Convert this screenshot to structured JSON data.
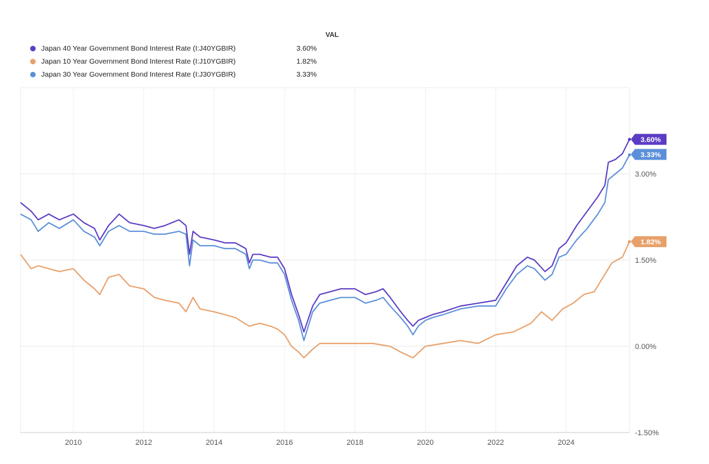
{
  "chart_data": {
    "type": "line",
    "title": "",
    "legend_header": "VAL",
    "ylim": [
      -1.5,
      4.5
    ],
    "xlim": [
      2008.5,
      2025.8
    ],
    "y_ticks": [
      {
        "value": 3.0,
        "label": "3.00%"
      },
      {
        "value": 1.5,
        "label": "1.50%"
      },
      {
        "value": 0.0,
        "label": "0.00%"
      },
      {
        "value": -1.5,
        "label": "-1.50%"
      }
    ],
    "x_ticks": [
      {
        "value": 2010,
        "label": "2010"
      },
      {
        "value": 2012,
        "label": "2012"
      },
      {
        "value": 2014,
        "label": "2014"
      },
      {
        "value": 2016,
        "label": "2016"
      },
      {
        "value": 2018,
        "label": "2018"
      },
      {
        "value": 2020,
        "label": "2020"
      },
      {
        "value": 2022,
        "label": "2022"
      },
      {
        "value": 2024,
        "label": "2024"
      }
    ],
    "series": [
      {
        "name": "Japan 40 Year Government Bond Interest Rate (I:J40YGBIR)",
        "value_label": "3.60%",
        "color": "#5b3cc4",
        "x": [
          2008.5,
          2008.8,
          2009.0,
          2009.3,
          2009.6,
          2010.0,
          2010.3,
          2010.6,
          2010.75,
          2011.0,
          2011.3,
          2011.6,
          2012.0,
          2012.3,
          2012.6,
          2013.0,
          2013.2,
          2013.3,
          2013.4,
          2013.6,
          2014.0,
          2014.3,
          2014.6,
          2014.9,
          2015.0,
          2015.1,
          2015.3,
          2015.6,
          2015.8,
          2016.0,
          2016.2,
          2016.4,
          2016.55,
          2016.8,
          2017.0,
          2017.3,
          2017.6,
          2018.0,
          2018.3,
          2018.6,
          2018.8,
          2019.0,
          2019.3,
          2019.5,
          2019.65,
          2019.8,
          2020.0,
          2020.2,
          2020.5,
          2021.0,
          2021.5,
          2022.0,
          2022.3,
          2022.6,
          2022.9,
          2023.1,
          2023.4,
          2023.6,
          2023.8,
          2024.0,
          2024.3,
          2024.6,
          2024.9,
          2025.1,
          2025.2,
          2025.4,
          2025.6,
          2025.8
        ],
        "values": [
          2.5,
          2.35,
          2.2,
          2.3,
          2.2,
          2.3,
          2.15,
          2.05,
          1.85,
          2.1,
          2.3,
          2.15,
          2.1,
          2.05,
          2.1,
          2.2,
          2.1,
          1.6,
          2.0,
          1.9,
          1.85,
          1.8,
          1.8,
          1.7,
          1.45,
          1.6,
          1.6,
          1.55,
          1.55,
          1.35,
          0.9,
          0.55,
          0.25,
          0.7,
          0.9,
          0.95,
          1.0,
          1.0,
          0.9,
          0.95,
          1.0,
          0.85,
          0.6,
          0.45,
          0.35,
          0.45,
          0.5,
          0.55,
          0.6,
          0.7,
          0.75,
          0.8,
          1.1,
          1.4,
          1.55,
          1.5,
          1.3,
          1.4,
          1.7,
          1.8,
          2.1,
          2.35,
          2.6,
          2.8,
          3.2,
          3.25,
          3.35,
          3.6
        ]
      },
      {
        "name": "Japan 10 Year Government Bond Interest Rate (I:J10YGBIR)",
        "value_label": "1.82%",
        "color": "#e8a06a",
        "x": [
          2008.5,
          2008.8,
          2009.0,
          2009.3,
          2009.6,
          2010.0,
          2010.3,
          2010.6,
          2010.75,
          2011.0,
          2011.3,
          2011.6,
          2012.0,
          2012.3,
          2012.6,
          2013.0,
          2013.2,
          2013.4,
          2013.6,
          2014.0,
          2014.3,
          2014.6,
          2015.0,
          2015.3,
          2015.6,
          2015.8,
          2016.0,
          2016.2,
          2016.4,
          2016.55,
          2016.8,
          2017.0,
          2017.5,
          2018.0,
          2018.5,
          2019.0,
          2019.3,
          2019.65,
          2020.0,
          2020.5,
          2021.0,
          2021.5,
          2022.0,
          2022.5,
          2023.0,
          2023.3,
          2023.6,
          2023.9,
          2024.2,
          2024.5,
          2024.8,
          2025.0,
          2025.3,
          2025.6,
          2025.8
        ],
        "values": [
          1.6,
          1.35,
          1.4,
          1.35,
          1.3,
          1.35,
          1.15,
          1.0,
          0.9,
          1.2,
          1.25,
          1.05,
          1.0,
          0.85,
          0.8,
          0.75,
          0.6,
          0.85,
          0.65,
          0.6,
          0.55,
          0.5,
          0.35,
          0.4,
          0.35,
          0.3,
          0.2,
          0.0,
          -0.1,
          -0.2,
          -0.05,
          0.05,
          0.05,
          0.05,
          0.05,
          0.0,
          -0.1,
          -0.2,
          0.0,
          0.05,
          0.1,
          0.05,
          0.2,
          0.25,
          0.4,
          0.6,
          0.45,
          0.65,
          0.75,
          0.9,
          0.95,
          1.15,
          1.45,
          1.55,
          1.82
        ]
      },
      {
        "name": "Japan 30 Year Government Bond Interest Rate (I:J30YGBIR)",
        "value_label": "3.33%",
        "color": "#5b8fd9",
        "x": [
          2008.5,
          2008.8,
          2009.0,
          2009.3,
          2009.6,
          2010.0,
          2010.3,
          2010.6,
          2010.75,
          2011.0,
          2011.3,
          2011.6,
          2012.0,
          2012.3,
          2012.6,
          2013.0,
          2013.2,
          2013.3,
          2013.4,
          2013.6,
          2014.0,
          2014.3,
          2014.6,
          2014.9,
          2015.0,
          2015.1,
          2015.3,
          2015.6,
          2015.8,
          2016.0,
          2016.2,
          2016.4,
          2016.55,
          2016.8,
          2017.0,
          2017.3,
          2017.6,
          2018.0,
          2018.3,
          2018.6,
          2018.8,
          2019.0,
          2019.3,
          2019.5,
          2019.65,
          2019.8,
          2020.0,
          2020.2,
          2020.5,
          2021.0,
          2021.5,
          2022.0,
          2022.3,
          2022.6,
          2022.9,
          2023.1,
          2023.4,
          2023.6,
          2023.8,
          2024.0,
          2024.3,
          2024.6,
          2024.9,
          2025.1,
          2025.2,
          2025.4,
          2025.6,
          2025.8
        ],
        "values": [
          2.3,
          2.2,
          2.0,
          2.15,
          2.05,
          2.2,
          2.0,
          1.9,
          1.75,
          2.0,
          2.1,
          2.0,
          2.0,
          1.95,
          1.95,
          2.0,
          1.95,
          1.4,
          1.85,
          1.75,
          1.75,
          1.7,
          1.7,
          1.6,
          1.35,
          1.5,
          1.5,
          1.45,
          1.45,
          1.25,
          0.8,
          0.45,
          0.1,
          0.6,
          0.75,
          0.8,
          0.85,
          0.85,
          0.75,
          0.8,
          0.85,
          0.7,
          0.5,
          0.35,
          0.2,
          0.35,
          0.45,
          0.5,
          0.55,
          0.65,
          0.7,
          0.7,
          1.0,
          1.25,
          1.4,
          1.35,
          1.15,
          1.25,
          1.55,
          1.6,
          1.85,
          2.05,
          2.3,
          2.5,
          2.9,
          3.0,
          3.1,
          3.33
        ]
      }
    ]
  }
}
